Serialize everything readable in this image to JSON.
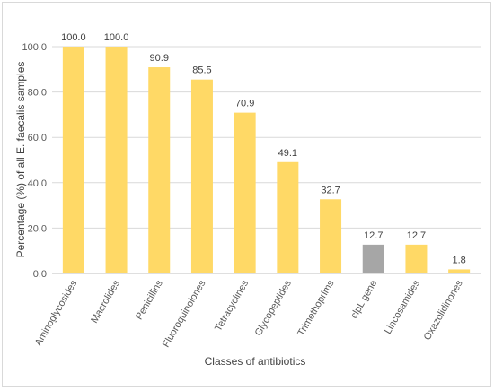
{
  "chart_data": {
    "type": "bar",
    "title": "",
    "xlabel": "Classes of antibiotics",
    "ylabel": "Percentage (%) of all E. faecalis samples",
    "ylim": [
      0,
      100
    ],
    "yticks": [
      "0.0",
      "20.0",
      "40.0",
      "60.0",
      "80.0",
      "100.0"
    ],
    "grid": true,
    "categories": [
      "Aminoglycosides",
      "Macrolides",
      "Penicillins",
      "Fluoroquinolones",
      "Tetracyclines",
      "Glycopeptides",
      "Trimethoprims",
      "clpL gene",
      "Lincosamides",
      "Oxazolidinones"
    ],
    "values": [
      100.0,
      100.0,
      90.9,
      85.5,
      70.9,
      49.1,
      32.7,
      12.7,
      12.7,
      1.8
    ],
    "data_labels": [
      "100.0",
      "100.0",
      "90.9",
      "85.5",
      "70.9",
      "49.1",
      "32.7",
      "12.7",
      "12.7",
      "1.8"
    ],
    "colors": {
      "bar": "#FFD966",
      "highlight": "#A6A6A6",
      "gridline": "#D9D9D9",
      "axis": "#BFBFBF"
    },
    "highlight_category": "clpL gene"
  }
}
